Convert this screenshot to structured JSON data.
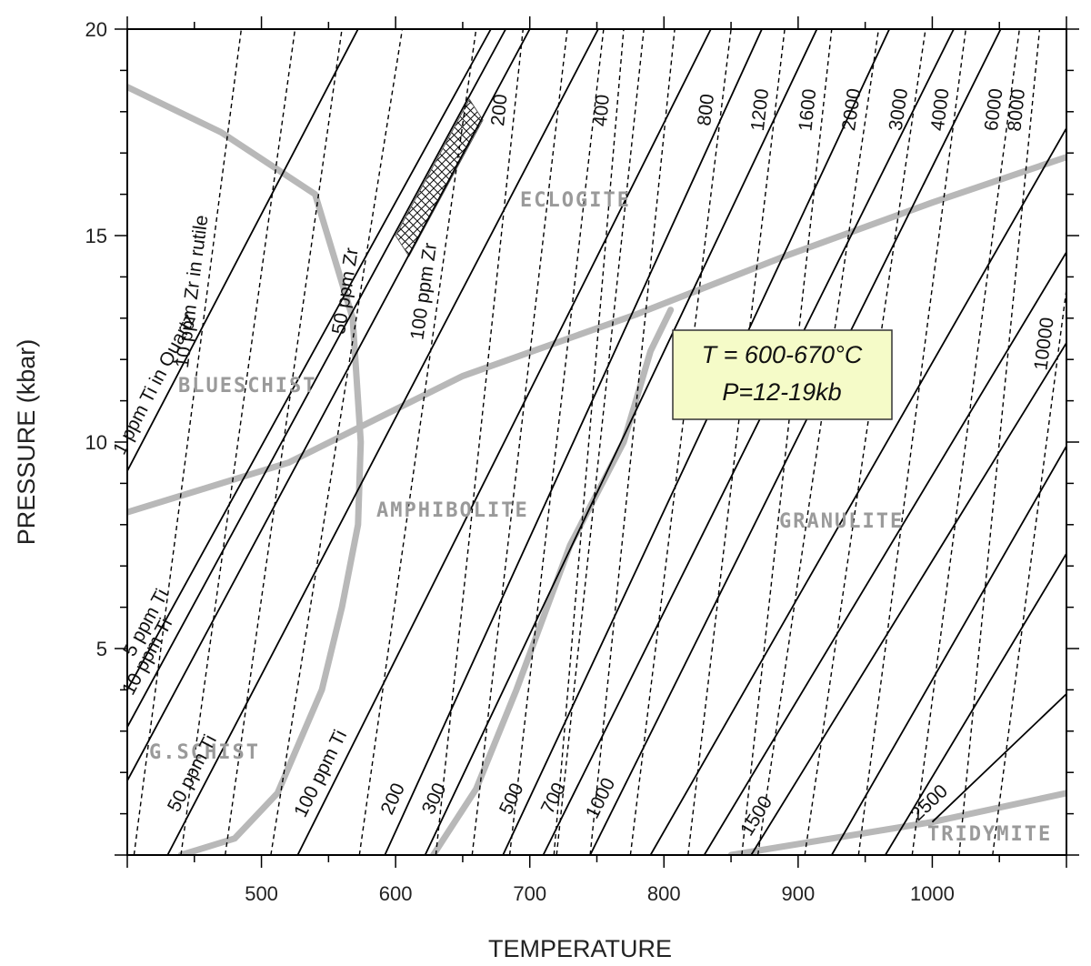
{
  "chart_data": {
    "type": "line",
    "xlabel": "TEMPERATURE",
    "ylabel": "PRESSURE (kbar)",
    "xlim": [
      400,
      1100
    ],
    "ylim": [
      0,
      20
    ],
    "x_ticks": [
      500,
      600,
      700,
      800,
      900,
      1000
    ],
    "y_ticks": [
      5,
      10,
      15,
      20
    ],
    "grid": false,
    "legend": "none",
    "ti_in_quartz_isopleths": [
      {
        "label": "1 ppm Ti in Quartz",
        "points": [
          [
            400,
            9.3
          ],
          [
            572,
            20
          ]
        ]
      },
      {
        "label": "5 ppm Ti",
        "points": [
          [
            400,
            4.0
          ],
          [
            671,
            20
          ]
        ]
      },
      {
        "label": "10 ppm Ti",
        "points": [
          [
            400,
            3.1
          ],
          [
            682,
            20
          ]
        ]
      },
      {
        "label": "",
        "points": [
          [
            400,
            1.8
          ],
          [
            700,
            20
          ]
        ]
      },
      {
        "label": "50 ppm Ti",
        "points": [
          [
            430,
            0
          ],
          [
            751,
            20
          ]
        ]
      },
      {
        "label": "100 ppm Ti",
        "points": [
          [
            527,
            0
          ],
          [
            835,
            20
          ]
        ]
      },
      {
        "label": "200",
        "points": [
          [
            592,
            0
          ],
          [
            873,
            20
          ]
        ]
      },
      {
        "label": "300",
        "points": [
          [
            622,
            0
          ],
          [
            914,
            20
          ]
        ]
      },
      {
        "label": "500",
        "points": [
          [
            680,
            0
          ],
          [
            968,
            20
          ]
        ]
      },
      {
        "label": "700",
        "points": [
          [
            710,
            0
          ],
          [
            1016,
            20
          ]
        ]
      },
      {
        "label": "1000",
        "points": [
          [
            745,
            0
          ],
          [
            1051,
            20
          ]
        ]
      },
      {
        "label": "",
        "points": [
          [
            790,
            0
          ],
          [
            1100,
            17.6
          ]
        ]
      },
      {
        "label": "",
        "points": [
          [
            830,
            0
          ],
          [
            1100,
            14.6
          ]
        ]
      },
      {
        "label": "1500",
        "points": [
          [
            865,
            0
          ],
          [
            1100,
            12.4
          ]
        ]
      },
      {
        "label": "",
        "points": [
          [
            925,
            0
          ],
          [
            1100,
            9.9
          ]
        ]
      },
      {
        "label": "",
        "points": [
          [
            965,
            0
          ],
          [
            1100,
            7.3
          ]
        ]
      },
      {
        "label": "2500",
        "points": [
          [
            1000,
            0.8
          ],
          [
            1100,
            3.9
          ]
        ]
      }
    ],
    "zr_in_rutile_isopleths": [
      {
        "label": "10 ppm Zr in rutile",
        "points": [
          [
            405,
            0
          ],
          [
            485,
            20
          ]
        ]
      },
      {
        "label": "",
        "points": [
          [
            440,
            0
          ],
          [
            525,
            20
          ]
        ]
      },
      {
        "label": "",
        "points": [
          [
            473,
            0
          ],
          [
            560,
            20
          ]
        ]
      },
      {
        "label": "50 ppm Zr",
        "points": [
          [
            507,
            0
          ],
          [
            605,
            20
          ]
        ]
      },
      {
        "label": "100 ppm Zr",
        "points": [
          [
            573,
            0
          ],
          [
            660,
            20
          ]
        ]
      },
      {
        "label": "200",
        "points": [
          [
            630,
            0
          ],
          [
            695,
            20
          ]
        ]
      },
      {
        "label": "",
        "points": [
          [
            657,
            0
          ],
          [
            728,
            20
          ]
        ]
      },
      {
        "label": "",
        "points": [
          [
            685,
            0
          ],
          [
            755,
            20
          ]
        ]
      },
      {
        "label": "",
        "points": [
          [
            720,
            0
          ],
          [
            785,
            20
          ]
        ]
      },
      {
        "label": "",
        "points": [
          [
            745,
            0
          ],
          [
            808,
            20
          ]
        ]
      },
      {
        "label": "400",
        "points": [
          [
            718,
            0
          ],
          [
            770,
            20
          ]
        ]
      },
      {
        "label": "800",
        "points": [
          [
            775,
            0
          ],
          [
            850,
            20
          ]
        ]
      },
      {
        "label": "1200",
        "points": [
          [
            818,
            0
          ],
          [
            890,
            20
          ]
        ]
      },
      {
        "label": "1600",
        "points": [
          [
            858,
            0
          ],
          [
            925,
            20
          ]
        ]
      },
      {
        "label": "2000",
        "points": [
          [
            870,
            0
          ],
          [
            960,
            20
          ]
        ]
      },
      {
        "label": "3000",
        "points": [
          [
            905,
            0
          ],
          [
            995,
            20
          ]
        ]
      },
      {
        "label": "4000",
        "points": [
          [
            945,
            0
          ],
          [
            1025,
            20
          ]
        ]
      },
      {
        "label": "6000",
        "points": [
          [
            985,
            0
          ],
          [
            1065,
            20
          ]
        ]
      },
      {
        "label": "8000",
        "points": [
          [
            1020,
            0
          ],
          [
            1080,
            20
          ]
        ]
      },
      {
        "label": "10000",
        "points": [
          [
            1045,
            0
          ],
          [
            1100,
            13.7
          ]
        ]
      }
    ],
    "facies_boundaries": [
      {
        "name": "blueschist-greenschist",
        "points": [
          [
            400,
            18.6
          ],
          [
            470,
            17.5
          ],
          [
            540,
            16.0
          ],
          [
            568,
            13.0
          ],
          [
            574,
            10.0
          ],
          [
            572,
            8.0
          ],
          [
            560,
            6.0
          ],
          [
            545,
            4.0
          ],
          [
            512,
            1.5
          ],
          [
            480,
            0.4
          ],
          [
            440,
            0
          ]
        ]
      },
      {
        "name": "amphibolite-eclogite",
        "points": [
          [
            400,
            8.3
          ],
          [
            520,
            9.5
          ],
          [
            650,
            11.6
          ],
          [
            780,
            13.1
          ],
          [
            890,
            14.5
          ],
          [
            1000,
            15.8
          ],
          [
            1100,
            16.9
          ]
        ]
      },
      {
        "name": "amphibolite-granulite",
        "points": [
          [
            628,
            0
          ],
          [
            660,
            1.6
          ],
          [
            690,
            4.0
          ],
          [
            730,
            7.5
          ],
          [
            770,
            10.0
          ],
          [
            790,
            12.2
          ],
          [
            805,
            13.2
          ]
        ]
      },
      {
        "name": "tridymite",
        "points": [
          [
            850,
            0
          ],
          [
            1000,
            0.8
          ],
          [
            1100,
            1.5
          ]
        ]
      }
    ],
    "hatched_region": {
      "points": [
        [
          600,
          15.0
        ],
        [
          655,
          18.3
        ],
        [
          665,
          17.8
        ],
        [
          610,
          14.5
        ]
      ]
    },
    "facies_labels": [
      "ECLOGITE",
      "BLUESCHIST",
      "AMPHIBOLITE",
      "GRANULITE",
      "G.SCHIST",
      "TRIDYMITE"
    ],
    "annotation": {
      "lines": [
        "T = 600-670°C",
        "P=12-19kb"
      ],
      "fill": "#f5fbc8"
    },
    "colors": {
      "boundary": "#b8b8b8",
      "isopleth": "#000000",
      "annotation_fill": "#f5fbc8"
    }
  }
}
